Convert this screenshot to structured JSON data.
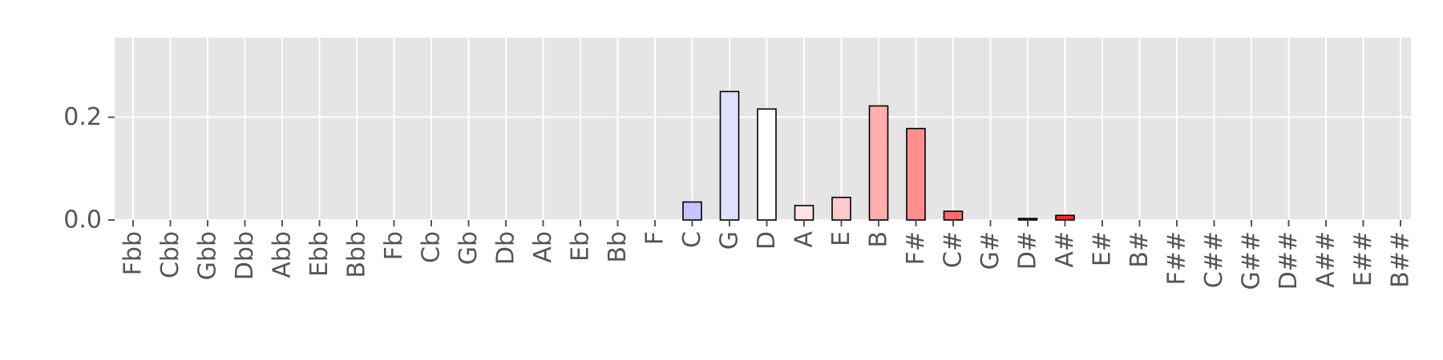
{
  "chart_data": {
    "type": "bar",
    "title": "",
    "xlabel": "",
    "ylabel": "",
    "categories": [
      "Fbb",
      "Cbb",
      "Gbb",
      "Dbb",
      "Abb",
      "Ebb",
      "Bbb",
      "Fb",
      "Cb",
      "Gb",
      "Db",
      "Ab",
      "Eb",
      "Bb",
      "F",
      "C",
      "G",
      "D",
      "A",
      "E",
      "B",
      "F#",
      "C#",
      "G#",
      "D#",
      "A#",
      "E#",
      "B#",
      "F##",
      "C##",
      "G##",
      "D##",
      "A##",
      "E##",
      "B##"
    ],
    "values": [
      0,
      0,
      0,
      0,
      0,
      0,
      0,
      0,
      0,
      0,
      0,
      0,
      0,
      0,
      0,
      0.035,
      0.25,
      0.216,
      0.028,
      0.044,
      0.222,
      0.178,
      0.017,
      0,
      0.003,
      0.009,
      0,
      0,
      0,
      0,
      0,
      0,
      0,
      0,
      0
    ],
    "bar_colors": [
      "#ffffff",
      "#ffffff",
      "#ffffff",
      "#ffffff",
      "#ffffff",
      "#ffffff",
      "#ffffff",
      "#ffffff",
      "#ffffff",
      "#ffffff",
      "#ffffff",
      "#ffffff",
      "#ffffff",
      "#ffffff",
      "#ffffff",
      "#c4c4ff",
      "#e0e0ff",
      "#ffffff",
      "#ffe3e3",
      "#ffcaca",
      "#ffafaf",
      "#ff8e8e",
      "#ff6b6b",
      "#ff5555",
      "#ff3c3c",
      "#ff2828",
      "#ff1c1c",
      "#ff1010",
      "#ff0808",
      "#ff0000",
      "#ff0000",
      "#ff0000",
      "#ff0000",
      "#ff0000",
      "#ff0000"
    ],
    "yticks": [
      0.0,
      0.2
    ],
    "ytick_labels": [
      "0.0",
      "0.2"
    ],
    "ylim": [
      0,
      0.355
    ],
    "grid": true,
    "legend": "none",
    "colors": {
      "plot_background": "#e5e5e5",
      "grid": "#ffffff",
      "bar_edge": "#000000",
      "tick_text": "#555555"
    }
  }
}
